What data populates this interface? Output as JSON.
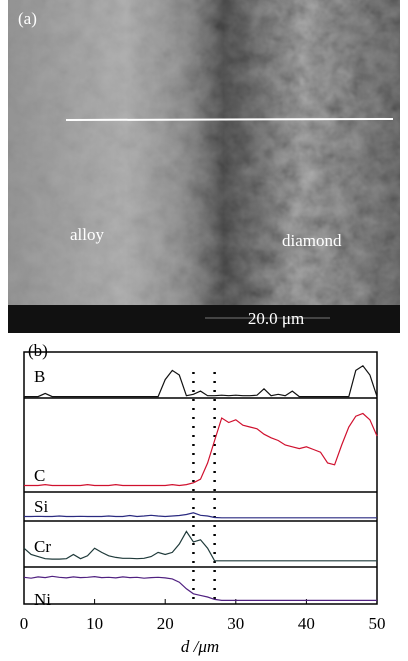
{
  "panel_a": {
    "label": "(a)",
    "annotations": [
      "alloy",
      "diamond"
    ],
    "scale_bar": "20.0 μm"
  },
  "chart_data": {
    "type": "line",
    "label": "(b)",
    "x_label": "d /μm",
    "x": [
      0,
      1,
      2,
      3,
      4,
      5,
      6,
      7,
      8,
      9,
      10,
      11,
      12,
      13,
      14,
      15,
      16,
      17,
      18,
      19,
      20,
      21,
      22,
      23,
      24,
      25,
      26,
      27,
      28,
      29,
      30,
      31,
      32,
      33,
      34,
      35,
      36,
      37,
      38,
      39,
      40,
      41,
      42,
      43,
      44,
      45,
      46,
      47,
      48,
      49,
      50
    ],
    "xlim": [
      0,
      50
    ],
    "xticks": [
      0,
      10,
      20,
      30,
      40,
      50
    ],
    "ylim": [
      0,
      100
    ],
    "vlines": [
      24,
      27
    ],
    "series": [
      {
        "name": "B",
        "color": "#111111",
        "values": [
          3,
          3,
          3,
          10,
          3,
          3,
          3,
          3,
          3,
          3,
          3,
          3,
          3,
          3,
          3,
          3,
          3,
          3,
          3,
          3,
          40,
          60,
          50,
          5,
          8,
          15,
          5,
          5,
          6,
          5,
          6,
          5,
          5,
          6,
          20,
          5,
          8,
          5,
          15,
          3,
          3,
          3,
          3,
          3,
          3,
          3,
          3,
          60,
          70,
          50,
          3
        ]
      },
      {
        "name": "C",
        "color": "#d0102e",
        "values": [
          5,
          5,
          5,
          6,
          5,
          5,
          5,
          5,
          5,
          6,
          5,
          5,
          5,
          6,
          5,
          5,
          5,
          5,
          5,
          5,
          5,
          6,
          5,
          6,
          8,
          12,
          30,
          55,
          80,
          75,
          78,
          72,
          70,
          68,
          62,
          58,
          55,
          50,
          48,
          46,
          48,
          45,
          42,
          30,
          28,
          50,
          70,
          82,
          85,
          78,
          60
        ]
      },
      {
        "name": "Si",
        "color": "#2a2a80",
        "values": [
          10,
          10,
          11,
          10,
          10,
          12,
          10,
          10,
          11,
          10,
          10,
          10,
          12,
          10,
          10,
          14,
          10,
          12,
          15,
          12,
          10,
          12,
          14,
          18,
          25,
          15,
          12,
          6,
          5,
          5,
          5,
          5,
          5,
          5,
          5,
          5,
          5,
          5,
          5,
          5,
          5,
          5,
          5,
          5,
          5,
          5,
          5,
          5,
          5,
          5,
          5
        ]
      },
      {
        "name": "Cr",
        "color": "#1f3a3a",
        "values": [
          40,
          25,
          20,
          15,
          14,
          14,
          15,
          25,
          15,
          22,
          40,
          30,
          22,
          18,
          16,
          16,
          15,
          16,
          20,
          30,
          25,
          30,
          50,
          80,
          55,
          60,
          40,
          10,
          10,
          10,
          10,
          10,
          10,
          10,
          10,
          10,
          10,
          10,
          10,
          10,
          10,
          10,
          10,
          10,
          10,
          10,
          10,
          10,
          10,
          10,
          10
        ]
      },
      {
        "name": "Ni",
        "color": "#502080",
        "values": [
          75,
          72,
          76,
          74,
          78,
          75,
          73,
          76,
          74,
          75,
          77,
          74,
          75,
          73,
          76,
          74,
          75,
          72,
          74,
          75,
          73,
          70,
          60,
          40,
          25,
          20,
          15,
          8,
          5,
          5,
          5,
          5,
          5,
          5,
          5,
          5,
          5,
          5,
          5,
          5,
          5,
          5,
          5,
          5,
          5,
          5,
          5,
          5,
          5,
          5,
          5
        ]
      }
    ]
  }
}
